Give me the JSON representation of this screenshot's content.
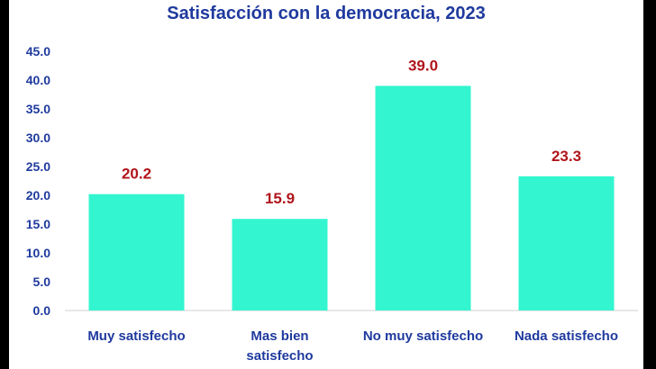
{
  "chart_data": {
    "type": "bar",
    "title": "Satisfacción con la democracia, 2023",
    "categories": [
      [
        "Muy satisfecho"
      ],
      [
        "Mas bien",
        "satisfecho"
      ],
      [
        "No muy satisfecho"
      ],
      [
        "Nada satisfecho"
      ]
    ],
    "values": [
      20.2,
      15.9,
      39.0,
      23.3
    ],
    "data_labels": [
      "20.2",
      "15.9",
      "39.0",
      "23.3"
    ],
    "yticks": [
      "0.0",
      "5.0",
      "10.0",
      "15.0",
      "20.0",
      "25.0",
      "30.0",
      "35.0",
      "40.0",
      "45.0"
    ],
    "ylim": [
      0,
      45
    ],
    "grid": false,
    "bar_color": "#33f5cf",
    "label_color": "#b0151b",
    "text_color": "#1f3a9e"
  }
}
